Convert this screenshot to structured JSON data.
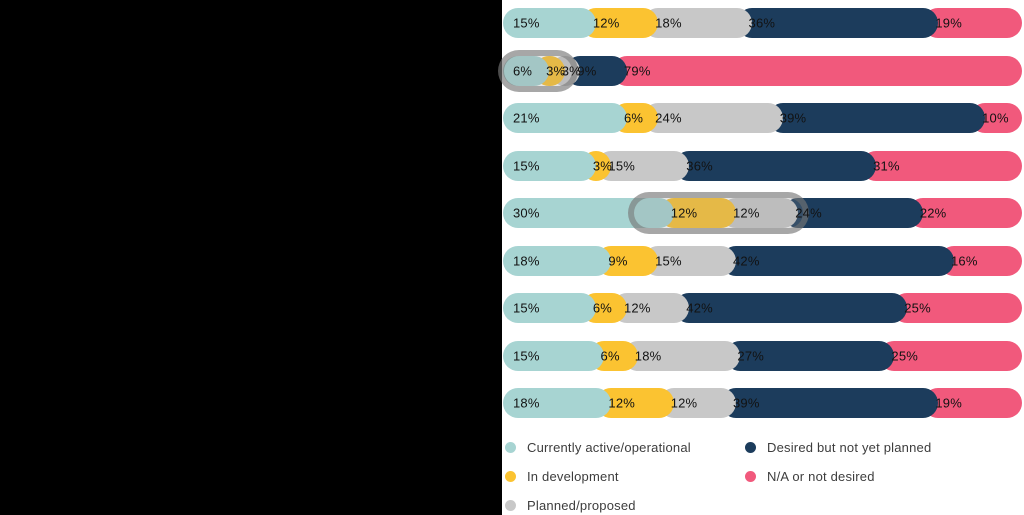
{
  "chart_data": {
    "type": "bar",
    "orientation": "horizontal",
    "stacked": true,
    "unit": "%",
    "title": "",
    "xlabel": "",
    "ylabel": "",
    "xlim": [
      0,
      100
    ],
    "grid": false,
    "legend_position": "bottom",
    "series_labels": [
      "Currently active/operational",
      "In development",
      "Planned/proposed",
      "Desired but not yet planned",
      "N/A or not desired"
    ],
    "series_colors": [
      "#a7d4d2",
      "#fbc331",
      "#c8c8c8",
      "#1c3c5c",
      "#f1597c"
    ],
    "rows": [
      {
        "values": [
          15,
          12,
          18,
          36,
          19
        ]
      },
      {
        "values": [
          6,
          3,
          3,
          9,
          79
        ]
      },
      {
        "values": [
          21,
          6,
          24,
          39,
          10
        ]
      },
      {
        "values": [
          15,
          3,
          15,
          36,
          31
        ]
      },
      {
        "values": [
          30,
          12,
          12,
          24,
          22
        ]
      },
      {
        "values": [
          18,
          9,
          15,
          42,
          16
        ]
      },
      {
        "values": [
          15,
          6,
          12,
          42,
          25
        ]
      },
      {
        "values": [
          15,
          6,
          18,
          27,
          25
        ]
      },
      {
        "values": [
          18,
          12,
          12,
          39,
          19
        ]
      }
    ],
    "highlights": [
      {
        "row_index": 1,
        "start_pct": -1,
        "end_pct": 14.5
      },
      {
        "row_index": 4,
        "start_pct": 24,
        "end_pct": 59
      }
    ]
  }
}
